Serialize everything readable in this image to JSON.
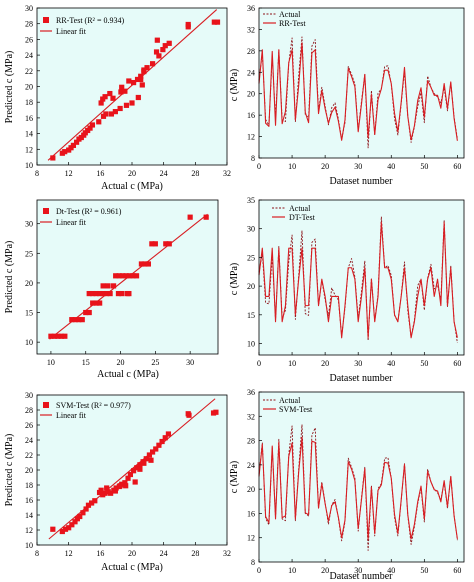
{
  "chart_data": [
    {
      "type": "scatter",
      "panel": "RR scatter",
      "xlabel": "Actual c (MPa)",
      "ylabel": "Predicted c (MPa)",
      "xlim": [
        8,
        32
      ],
      "ylim": [
        10,
        30
      ],
      "xticks": [
        8,
        12,
        16,
        20,
        24,
        28,
        32
      ],
      "yticks": [
        10,
        12,
        14,
        16,
        18,
        20,
        22,
        24,
        26,
        28,
        30
      ],
      "legend": {
        "position": "top-left",
        "marker_label": "RR-Test (R² = 0.934)",
        "line_label": "Linear fit"
      },
      "fit_line": [
        [
          9.4,
          10.6
        ],
        [
          30.7,
          29.8
        ]
      ],
      "points": [
        [
          10,
          10.9
        ],
        [
          11.2,
          11.5
        ],
        [
          11.5,
          11.7
        ],
        [
          12,
          11.9
        ],
        [
          12.3,
          12.2
        ],
        [
          12.6,
          12.5
        ],
        [
          13,
          12.9
        ],
        [
          13.3,
          13.3
        ],
        [
          13.6,
          13.5
        ],
        [
          13.9,
          13.8
        ],
        [
          14.1,
          14.1
        ],
        [
          14.4,
          14.4
        ],
        [
          14.7,
          14.7
        ],
        [
          15,
          15.1
        ],
        [
          15.8,
          15.5
        ],
        [
          16.4,
          16.2
        ],
        [
          16.7,
          16.5
        ],
        [
          17.4,
          16.5
        ],
        [
          17.9,
          16.8
        ],
        [
          18.5,
          17.2
        ],
        [
          19.3,
          17.6
        ],
        [
          20,
          17.9
        ],
        [
          20.8,
          18.6
        ],
        [
          16.1,
          17.9
        ],
        [
          16.3,
          18.4
        ],
        [
          16.6,
          18.7
        ],
        [
          17.2,
          19.1
        ],
        [
          17.6,
          18.5
        ],
        [
          18.6,
          19.3
        ],
        [
          19.1,
          19.4
        ],
        [
          18.7,
          19.9
        ],
        [
          19.6,
          20.7
        ],
        [
          20.2,
          20.5
        ],
        [
          20.7,
          20.9
        ],
        [
          21.1,
          21.3
        ],
        [
          21.5,
          21.9
        ],
        [
          21.9,
          22.4
        ],
        [
          21.5,
          22.1
        ],
        [
          21.3,
          20.2
        ],
        [
          21.1,
          20.9
        ],
        [
          22.6,
          22.9
        ],
        [
          23.1,
          24.4
        ],
        [
          23.4,
          23.9
        ],
        [
          23.9,
          24.7
        ],
        [
          24.2,
          25.2
        ],
        [
          24.7,
          25.5
        ],
        [
          23.2,
          25.9
        ],
        [
          27.1,
          27.6
        ],
        [
          27.1,
          27.9
        ],
        [
          30.4,
          28.2
        ],
        [
          30.8,
          28.2
        ]
      ]
    },
    {
      "type": "line",
      "panel": "RR line",
      "xlabel": "Dataset number",
      "ylabel": "c (MPa)",
      "xlim": [
        0,
        62
      ],
      "ylim": [
        8,
        36
      ],
      "xticks": [
        0,
        10,
        20,
        30,
        40,
        50,
        60
      ],
      "yticks": [
        8,
        12,
        16,
        20,
        24,
        28,
        32,
        36
      ],
      "series": [
        {
          "name": "Actual",
          "dashed": true,
          "values": [
            22.4,
            27.6,
            15.2,
            14.1,
            26.9,
            15.3,
            28.2,
            15.1,
            14.8,
            25.7,
            30.4,
            14.8,
            23.3,
            30.6,
            16,
            15.6,
            28.9,
            30.1,
            16.8,
            21.2,
            17.7,
            14.2,
            17.4,
            18.3,
            15.3,
            11.5,
            14.6,
            25.1,
            23.6,
            21.8,
            13.1,
            18.6,
            23.6,
            9.9,
            20.6,
            12.3,
            20.1,
            20.9,
            25.1,
            25.2,
            21.8,
            15.3,
            12.3,
            18.1,
            24.2,
            15.7,
            10.9,
            13.8,
            17.6,
            20.2,
            14.6,
            23.3,
            21.2,
            20,
            19.4,
            18.3,
            21.1,
            16.8,
            22.1,
            15.7,
            11.6
          ]
        },
        {
          "name": "RR-Test",
          "dashed": false,
          "values": [
            21.9,
            28.2,
            14.5,
            13.9,
            27.9,
            14.1,
            28.2,
            14.4,
            16.7,
            25.8,
            28.2,
            15.1,
            21.5,
            29.5,
            16.5,
            14.6,
            27.6,
            28.2,
            16.3,
            20.6,
            17.2,
            14.5,
            16.5,
            17.5,
            14.9,
            11.3,
            15.1,
            24.7,
            23.2,
            21.3,
            12.9,
            18.1,
            23.6,
            11.8,
            19.9,
            12.4,
            18.9,
            20.9,
            24.4,
            24.4,
            21.9,
            16.3,
            12.9,
            18.4,
            24.9,
            15.8,
            11.4,
            14,
            18.7,
            21.1,
            15.6,
            22.4,
            21.2,
            19.7,
            19.7,
            17.3,
            21.9,
            17.2,
            22.2,
            15.4,
            11.2
          ]
        }
      ],
      "legend": {
        "position": "top-left"
      }
    },
    {
      "type": "scatter",
      "panel": "DT scatter",
      "xlabel": "Actual c (MPa)",
      "ylabel": "Predicted c (MPa)",
      "xlim": [
        8,
        34
      ],
      "ylim": [
        8,
        34
      ],
      "xticks": [
        10,
        15,
        20,
        25,
        30
      ],
      "yticks": [
        10,
        15,
        20,
        25,
        30
      ],
      "legend": {
        "position": "top-left",
        "marker_label": "Dt-Test (R² = 0.961)",
        "line_label": "Linear fit"
      },
      "fit_line": [
        [
          9.8,
          10.5
        ],
        [
          32.5,
          31.6
        ]
      ],
      "points": [
        [
          10,
          11
        ],
        [
          10.5,
          11
        ],
        [
          11,
          11
        ],
        [
          11.5,
          11
        ],
        [
          12,
          11
        ],
        [
          13,
          13.8
        ],
        [
          13.5,
          13.8
        ],
        [
          14,
          13.8
        ],
        [
          14.5,
          13.8
        ],
        [
          15,
          15
        ],
        [
          15.5,
          15
        ],
        [
          16,
          16.6
        ],
        [
          16.5,
          16.6
        ],
        [
          17,
          16.6
        ],
        [
          15.5,
          18.2
        ],
        [
          16,
          18.2
        ],
        [
          16.5,
          18.2
        ],
        [
          17,
          18.2
        ],
        [
          17.5,
          18.2
        ],
        [
          18,
          18.2
        ],
        [
          18.5,
          18.2
        ],
        [
          17.5,
          19.5
        ],
        [
          18.2,
          19.5
        ],
        [
          19,
          19.5
        ],
        [
          19.3,
          21.2
        ],
        [
          19.8,
          21.2
        ],
        [
          20.3,
          21.2
        ],
        [
          20.8,
          21.2
        ],
        [
          21.3,
          21.2
        ],
        [
          21.8,
          21.2
        ],
        [
          22.3,
          21.2
        ],
        [
          19.7,
          18.2
        ],
        [
          20.2,
          18.2
        ],
        [
          21,
          18.2
        ],
        [
          21.2,
          18.2
        ],
        [
          23,
          23.2
        ],
        [
          23.5,
          23.2
        ],
        [
          24,
          23.2
        ],
        [
          24.5,
          26.6
        ],
        [
          25,
          26.6
        ],
        [
          26.5,
          26.6
        ],
        [
          27,
          26.6
        ],
        [
          30,
          31.1
        ],
        [
          32.3,
          31.1
        ]
      ]
    },
    {
      "type": "line",
      "panel": "DT line",
      "xlabel": "Dataset number",
      "ylabel": "c (MPa)",
      "xlim": [
        0,
        62
      ],
      "ylim": [
        8,
        35
      ],
      "xticks": [
        0,
        10,
        20,
        30,
        40,
        50,
        60
      ],
      "yticks": [
        10,
        15,
        20,
        25,
        30,
        35
      ],
      "series": [
        {
          "name": "Actual",
          "dashed": true,
          "values": [
            22.4,
            25.7,
            17.1,
            16.9,
            25.2,
            14.1,
            26.9,
            14.4,
            15.8,
            24.2,
            28.9,
            14.2,
            21.8,
            29.6,
            15.2,
            14.9,
            27.6,
            28.2,
            16.6,
            21.1,
            17.6,
            14.8,
            19.7,
            18.4,
            17.6,
            11.3,
            16.2,
            23.2,
            24.8,
            21.6,
            14.4,
            19.1,
            24.4,
            10.5,
            21.4,
            13.9,
            18.6,
            32.1,
            23.2,
            23.6,
            21.9,
            14.9,
            13.8,
            18.3,
            24.2,
            15.7,
            11.1,
            14.1,
            20.1,
            21.2,
            15.8,
            21.4,
            23.8,
            19.5,
            20.2,
            17.6,
            31.5,
            16.3,
            23.6,
            13.9,
            10.1
          ]
        },
        {
          "name": "DT-Test",
          "dashed": false,
          "values": [
            21.9,
            26.6,
            18.2,
            18.2,
            26.6,
            13.8,
            26.6,
            13.8,
            16.6,
            26.6,
            26.6,
            15,
            21.2,
            26.6,
            16.6,
            16.6,
            26.6,
            26.6,
            16.6,
            21.2,
            18.2,
            13.8,
            18.2,
            18.2,
            18.2,
            11,
            16.6,
            23.2,
            23.2,
            21.2,
            13.8,
            18.2,
            23.2,
            11,
            21.2,
            13.8,
            18.2,
            31.1,
            23.2,
            23.2,
            21.2,
            15,
            13.8,
            18.2,
            23.2,
            16.6,
            11,
            13.8,
            18.2,
            21.2,
            16.6,
            21.2,
            23.2,
            18.2,
            21.2,
            16.6,
            31.1,
            16.6,
            23.2,
            13.8,
            11
          ]
        }
      ],
      "legend": {
        "position": "top-left"
      }
    },
    {
      "type": "scatter",
      "panel": "SVM scatter",
      "xlabel": "Actual c (MPa)",
      "ylabel": "Predicted c (MPa)",
      "xlim": [
        8,
        32
      ],
      "ylim": [
        10,
        30
      ],
      "xticks": [
        8,
        12,
        16,
        20,
        24,
        28,
        32
      ],
      "yticks": [
        10,
        12,
        14,
        16,
        18,
        20,
        22,
        24,
        26,
        28,
        30
      ],
      "legend": {
        "position": "top-left",
        "marker_label": "SVM-Test (R² = 0.977)",
        "line_label": "Linear fit"
      },
      "fit_line": [
        [
          9.5,
          10.8
        ],
        [
          30.5,
          29.5
        ]
      ],
      "points": [
        [
          10,
          12.1
        ],
        [
          11.2,
          11.8
        ],
        [
          11.6,
          12.1
        ],
        [
          12,
          12.3
        ],
        [
          12.4,
          12.7
        ],
        [
          12.8,
          13.1
        ],
        [
          13.1,
          13.5
        ],
        [
          13.4,
          13.8
        ],
        [
          13.8,
          14.3
        ],
        [
          14.2,
          14.8
        ],
        [
          14.5,
          15.3
        ],
        [
          14.9,
          15.6
        ],
        [
          15.3,
          15.9
        ],
        [
          15.9,
          17
        ],
        [
          16.3,
          16.7
        ],
        [
          16.6,
          16.9
        ],
        [
          17,
          17.1
        ],
        [
          17.3,
          16.9
        ],
        [
          17.7,
          17.3
        ],
        [
          18,
          17.6
        ],
        [
          18.4,
          17.8
        ],
        [
          18.7,
          18.1
        ],
        [
          19.1,
          18.3
        ],
        [
          19.5,
          18.9
        ],
        [
          19.8,
          19.4
        ],
        [
          20.2,
          19.9
        ],
        [
          20.6,
          20.3
        ],
        [
          21,
          20.7
        ],
        [
          21.4,
          21.1
        ],
        [
          21.8,
          21.5
        ],
        [
          22.2,
          22
        ],
        [
          22.6,
          22.4
        ],
        [
          23,
          22.8
        ],
        [
          23.4,
          23.3
        ],
        [
          23.8,
          23.8
        ],
        [
          24.2,
          24.3
        ],
        [
          24.6,
          24.8
        ],
        [
          16.1,
          17.3
        ],
        [
          16.8,
          17.6
        ],
        [
          17.9,
          17.2
        ],
        [
          18.5,
          17.9
        ],
        [
          19.2,
          17.9
        ],
        [
          20.4,
          18.4
        ],
        [
          21,
          20.1
        ],
        [
          21.5,
          20.9
        ],
        [
          22.4,
          21.3
        ],
        [
          27.2,
          27.3
        ],
        [
          27.1,
          27.5
        ],
        [
          30.3,
          27.6
        ],
        [
          30.6,
          27.7
        ]
      ]
    },
    {
      "type": "line",
      "panel": "SVM line",
      "xlabel": "Dataset number",
      "ylabel": "c (MPa)",
      "xlim": [
        0,
        62
      ],
      "ylim": [
        8,
        36
      ],
      "xticks": [
        0,
        10,
        20,
        30,
        40,
        50,
        60
      ],
      "yticks": [
        8,
        12,
        16,
        20,
        24,
        28,
        32,
        36
      ],
      "series": [
        {
          "name": "Actual",
          "dashed": true,
          "values": [
            22.4,
            27.6,
            15.2,
            14.1,
            26.9,
            15.3,
            28.2,
            15.1,
            14.8,
            25.7,
            30.4,
            14.8,
            23.3,
            30.6,
            16,
            15.6,
            28.9,
            30.1,
            16.8,
            21.2,
            17.7,
            14.2,
            17.4,
            18.3,
            15.3,
            11.5,
            14.6,
            25.1,
            23.6,
            21.8,
            13.1,
            18.6,
            23.6,
            9.9,
            20.6,
            12.3,
            20.1,
            20.9,
            25.1,
            25.2,
            21.8,
            15.3,
            12.3,
            18.1,
            24.2,
            15.7,
            10.9,
            13.8,
            17.6,
            20.2,
            14.6,
            23.3,
            21.2,
            20,
            19.4,
            18.3,
            21.1,
            16.8,
            22.1,
            15.7,
            11.6
          ]
        },
        {
          "name": "SVM-Test",
          "dashed": false,
          "values": [
            22.1,
            27.4,
            15.5,
            14.5,
            27.1,
            15.1,
            27.7,
            15.3,
            15.6,
            25.4,
            27.6,
            15.1,
            22.8,
            28.5,
            16.1,
            15.8,
            27.9,
            27.7,
            16.9,
            20.9,
            17.6,
            14.7,
            17.3,
            17.9,
            15.4,
            12,
            14.9,
            24.5,
            23.3,
            21.4,
            13.5,
            18.3,
            23.4,
            11.8,
            20.3,
            12.7,
            19.8,
            20.7,
            24.4,
            24.3,
            21.8,
            15.8,
            12.7,
            18.2,
            24.1,
            15.8,
            11.8,
            14.2,
            17.9,
            20.5,
            15.1,
            22.9,
            21.2,
            19.9,
            19.7,
            17.9,
            21.4,
            17.1,
            22.1,
            15.6,
            11.8
          ]
        }
      ],
      "legend": {
        "position": "top-left"
      }
    }
  ],
  "colors": {
    "marker": "#e8131b",
    "line": "#d81e23",
    "actual": "#8c1218",
    "panel_bg": "#e6fbf9",
    "axis": "#000000"
  }
}
